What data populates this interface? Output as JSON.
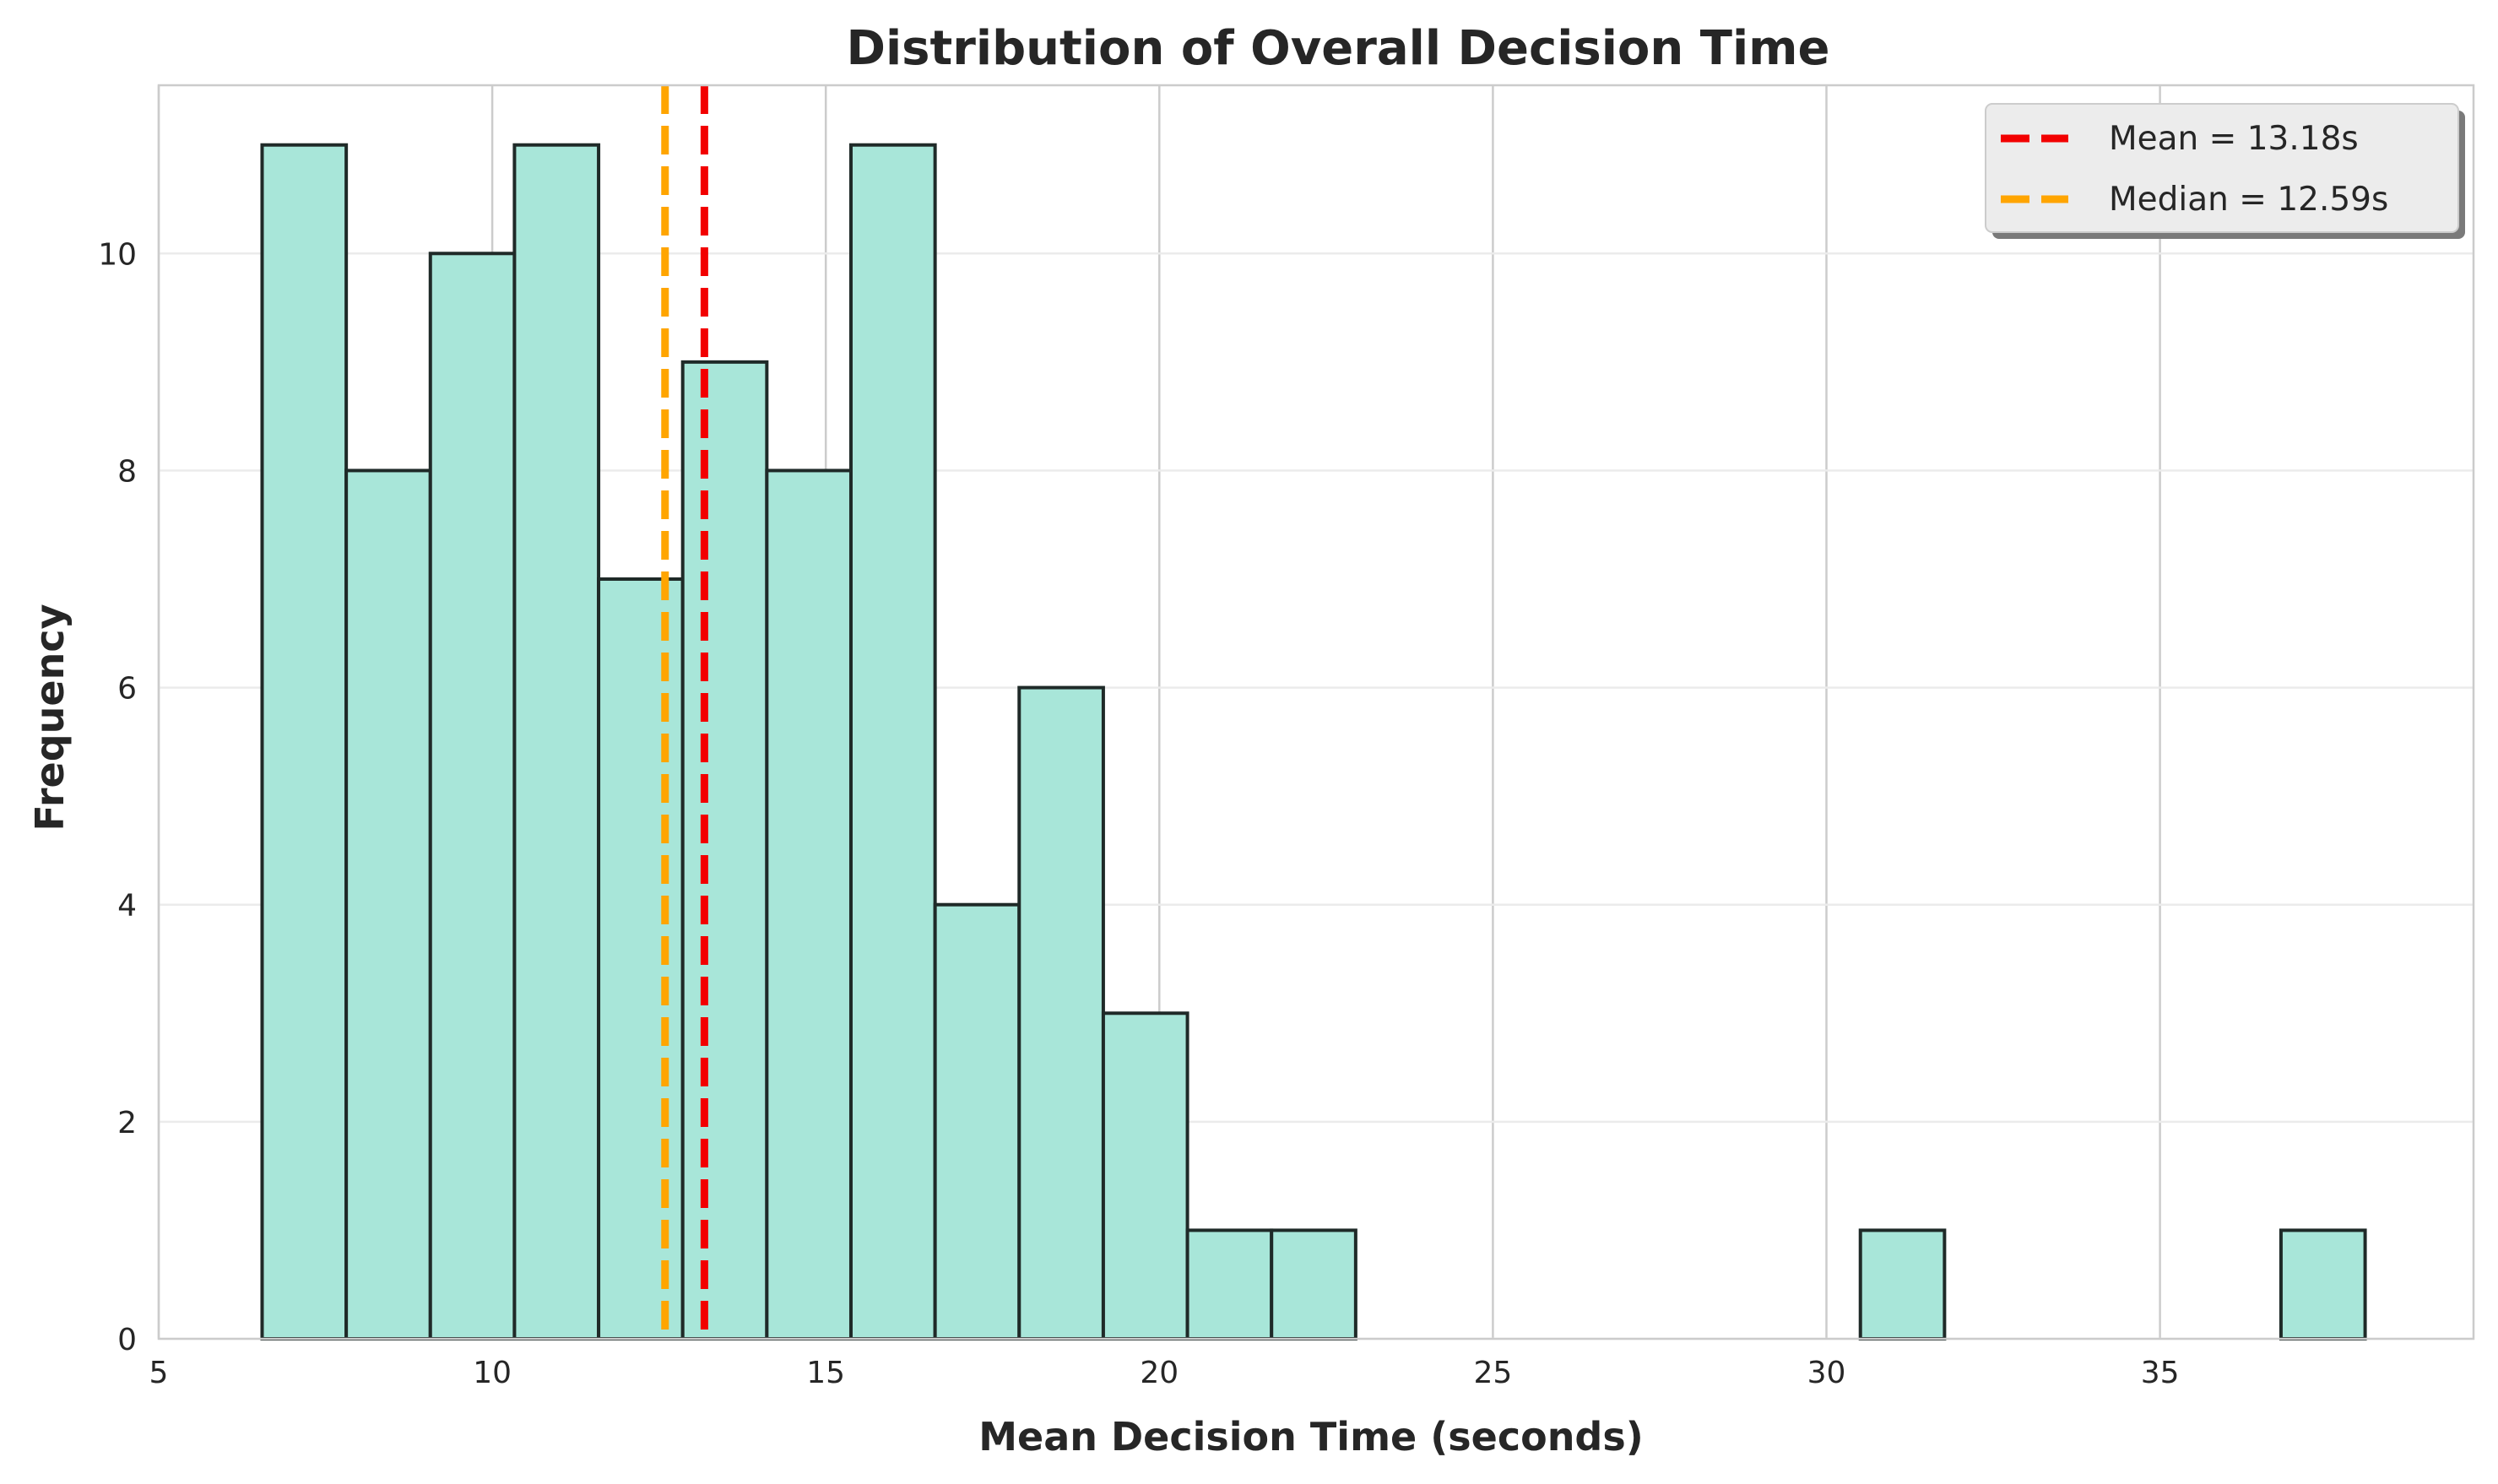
{
  "chart_data": {
    "type": "bar",
    "subtype": "histogram",
    "title": "Distribution of Overall Decision Time",
    "xlabel": "Mean Decision Time (seconds)",
    "ylabel": "Frequency",
    "xlim": [
      5,
      39.7
    ],
    "ylim": [
      0,
      11.55
    ],
    "xticks": [
      "5",
      "10",
      "15",
      "20",
      "25",
      "30",
      "35"
    ],
    "yticks": [
      "0",
      "2",
      "4",
      "6",
      "8",
      "10"
    ],
    "bin_edges": [
      6.55,
      7.811,
      9.072,
      10.333,
      11.594,
      12.855,
      14.116,
      15.377,
      16.638,
      17.899,
      19.16,
      20.421,
      21.682,
      22.943,
      24.204,
      25.465,
      26.726,
      27.987,
      29.248,
      30.509,
      31.77,
      33.031,
      34.292,
      35.553,
      36.814,
      38.075
    ],
    "counts": [
      11,
      8,
      10,
      11,
      7,
      9,
      8,
      11,
      4,
      6,
      3,
      1,
      1,
      0,
      0,
      0,
      0,
      0,
      0,
      1,
      0,
      0,
      0,
      0,
      1
    ],
    "bar_color": "#a8e6d9",
    "bar_edge_color": "#1f2a28",
    "grid": true,
    "legend_position": "top-right",
    "lines": [
      {
        "name": "Mean = 13.18s",
        "x": 13.18,
        "color": "#f20000",
        "style": "dashed"
      },
      {
        "name": "Median = 12.59s",
        "x": 12.59,
        "color": "#ffa500",
        "style": "dashed"
      }
    ]
  }
}
